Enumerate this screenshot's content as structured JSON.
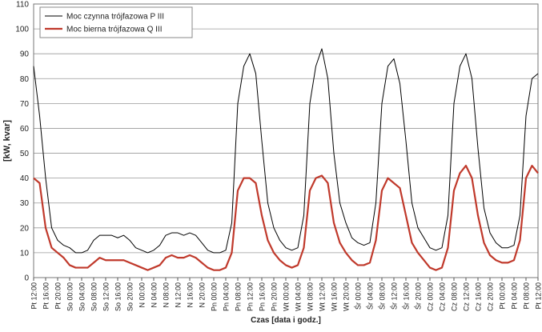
{
  "chart_data": {
    "type": "line",
    "y_label": "[kW, kvar]",
    "x_label": "Czas [data i godz.]",
    "categories": [
      "Pt 12:00",
      null,
      "Pt 16:00",
      null,
      "Pt 20:00",
      null,
      "So 00:00",
      null,
      "So 04:00",
      null,
      "So 08:00",
      null,
      "So 12:00",
      null,
      "So 16:00",
      null,
      "So 20:00",
      null,
      "N 00:00",
      null,
      "N 04:00",
      null,
      "N 08:00",
      null,
      "N 12:00",
      null,
      "N 16:00",
      null,
      "N 20:00",
      null,
      "Pn 00:00",
      null,
      "Pn 04:00",
      null,
      "Pn 08:00",
      null,
      "Pn 12:00",
      null,
      "Pn 16:00",
      null,
      "Pn 20:00",
      null,
      "Wt 00:00",
      null,
      "Wt 04:00",
      null,
      "Wt 08:00",
      null,
      "Wt 12:00",
      null,
      "Wt 16:00",
      null,
      "Wt 20:00",
      null,
      "Śr 00:00",
      null,
      "Śr 04:00",
      null,
      "Śr 08:00",
      null,
      "Śr 12:00",
      null,
      "Śr 16:00",
      null,
      "Śr 20:00",
      null,
      "Cz 00:00",
      null,
      "Cz 04:00",
      null,
      "Cz 08:00",
      null,
      "Cz 12:00",
      null,
      "Cz 16:00",
      null,
      "Cz 20:00",
      null,
      "Pt 00:00",
      null,
      "Pt 04:00",
      null,
      "Pt 08:00",
      null,
      "Pt 12:00"
    ],
    "series": [
      {
        "name": "Moc czynna trójfazowa P III",
        "color": "#000000",
        "width": 1,
        "values": [
          85,
          65,
          40,
          20,
          15,
          13,
          12,
          10,
          10,
          11,
          15,
          17,
          17,
          17,
          16,
          17,
          15,
          12,
          11,
          10,
          11,
          13,
          17,
          18,
          18,
          17,
          18,
          17,
          14,
          11,
          10,
          10,
          11,
          22,
          70,
          85,
          90,
          82,
          55,
          30,
          20,
          15,
          12,
          11,
          12,
          25,
          70,
          85,
          92,
          80,
          50,
          30,
          22,
          16,
          14,
          13,
          14,
          30,
          70,
          85,
          88,
          78,
          55,
          30,
          20,
          16,
          12,
          11,
          12,
          25,
          70,
          85,
          90,
          80,
          52,
          28,
          18,
          14,
          12,
          12,
          13,
          25,
          65,
          80,
          82
        ]
      },
      {
        "name": "Moc bierna trójfazowa Q III",
        "color": "#c0392b",
        "width": 2.2,
        "values": [
          40,
          38,
          20,
          12,
          10,
          8,
          5,
          4,
          4,
          4,
          6,
          8,
          7,
          7,
          7,
          7,
          6,
          5,
          4,
          3,
          4,
          5,
          8,
          9,
          8,
          8,
          9,
          8,
          6,
          4,
          3,
          3,
          4,
          10,
          35,
          40,
          40,
          38,
          25,
          15,
          10,
          7,
          5,
          4,
          5,
          12,
          35,
          40,
          41,
          38,
          22,
          14,
          10,
          7,
          5,
          5,
          6,
          15,
          35,
          40,
          38,
          36,
          25,
          14,
          10,
          7,
          4,
          3,
          4,
          12,
          35,
          42,
          45,
          40,
          25,
          14,
          9,
          7,
          6,
          6,
          7,
          15,
          40,
          45,
          42
        ]
      }
    ],
    "ylim": [
      0,
      110
    ],
    "yticks": [
      0,
      10,
      20,
      30,
      40,
      50,
      60,
      70,
      80,
      90,
      100,
      110
    ],
    "grid": true,
    "legend": "top-left"
  }
}
